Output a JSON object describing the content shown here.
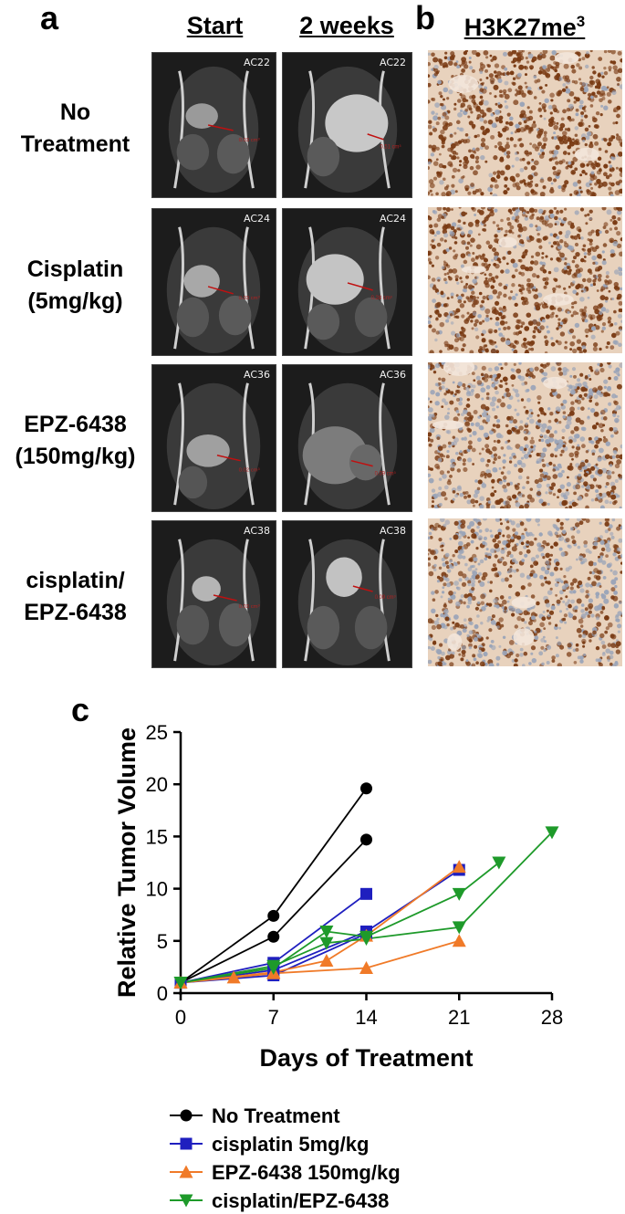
{
  "panels": {
    "a_letter": "a",
    "b_letter": "b",
    "c_letter": "c"
  },
  "headers": {
    "start": "Start",
    "two_weeks": "2 weeks",
    "stain_base": "H3K27me",
    "stain_sup": "3"
  },
  "rows": [
    {
      "line1": "No",
      "line2": "Treatment",
      "start_id": "AC22",
      "week_id": "AC22"
    },
    {
      "line1": "Cisplatin",
      "line2": "(5mg/kg)",
      "start_id": "AC24",
      "week_id": "AC24"
    },
    {
      "line1": "EPZ-6438",
      "line2": "(150mg/kg)",
      "start_id": "AC36",
      "week_id": "AC36"
    },
    {
      "line1": "cisplatin/",
      "line2": "EPZ-6438",
      "start_id": "AC38",
      "week_id": "AC38"
    }
  ],
  "colors": {
    "no_treatment": "#000000",
    "cisplatin": "#1f1fbf",
    "epz": "#f07a28",
    "combo": "#1e9a2a",
    "ihc_brown": "#7a3b14",
    "ihc_bg": "#e8d2bd"
  },
  "chart_data": {
    "type": "line",
    "xlabel": "Days of Treatment",
    "ylabel": "Relative Tumor Volume",
    "xlim": [
      0,
      28
    ],
    "ylim": [
      0,
      25
    ],
    "xticks": [
      0,
      7,
      14,
      21,
      28
    ],
    "yticks": [
      0,
      5,
      10,
      15,
      20,
      25
    ],
    "legend_position": "bottom",
    "series": [
      {
        "name": "No Treatment",
        "marker": "circle",
        "color": "#000000",
        "lines": [
          [
            [
              0,
              1
            ],
            [
              7,
              7.4
            ],
            [
              14,
              19.6
            ]
          ],
          [
            [
              0,
              1
            ],
            [
              7,
              5.4
            ],
            [
              14,
              14.7
            ]
          ]
        ]
      },
      {
        "name": "cisplatin 5mg/kg",
        "marker": "square",
        "color": "#1f1fbf",
        "lines": [
          [
            [
              0,
              1
            ],
            [
              7,
              2.9
            ],
            [
              14,
              9.5
            ]
          ],
          [
            [
              0,
              1
            ],
            [
              7,
              2.2
            ],
            [
              14,
              5.9
            ],
            [
              21,
              11.8
            ]
          ],
          [
            [
              0,
              1
            ],
            [
              7,
              1.7
            ],
            [
              14,
              5.7
            ]
          ]
        ]
      },
      {
        "name": "EPZ-6438 150mg/kg",
        "marker": "triangle-up",
        "color": "#f07a28",
        "lines": [
          [
            [
              0,
              1
            ],
            [
              4,
              1.5
            ],
            [
              7,
              1.9
            ],
            [
              14,
              2.4
            ],
            [
              21,
              5.0
            ]
          ],
          [
            [
              0,
              1
            ],
            [
              7,
              2.0
            ],
            [
              11,
              3.1
            ],
            [
              14,
              5.5
            ],
            [
              21,
              12.1
            ]
          ]
        ]
      },
      {
        "name": "cisplatin/EPZ-6438",
        "marker": "triangle-down",
        "color": "#1e9a2a",
        "lines": [
          [
            [
              0,
              1
            ],
            [
              7,
              2.4
            ],
            [
              11,
              5.9
            ],
            [
              14,
              5.4
            ],
            [
              21,
              9.5
            ],
            [
              24,
              12.5
            ]
          ],
          [
            [
              0,
              1
            ],
            [
              7,
              2.6
            ],
            [
              11,
              4.8
            ],
            [
              14,
              5.2
            ],
            [
              21,
              6.3
            ],
            [
              28,
              15.4
            ]
          ]
        ]
      }
    ]
  }
}
